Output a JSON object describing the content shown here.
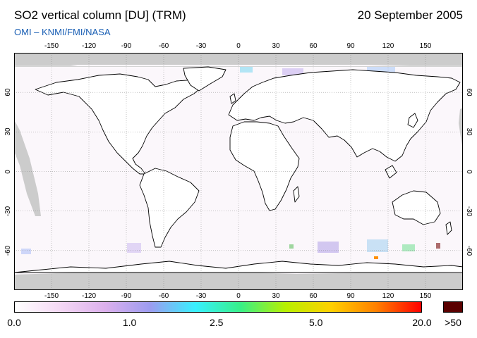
{
  "header": {
    "title": "SO2 vertical column [DU] (TRM)",
    "date": "20 September 2005",
    "credit": "OMI  –  KNMI/FMI/NASA"
  },
  "map": {
    "projection": "equirectangular",
    "lon_range": [
      -180,
      180
    ],
    "lat_range": [
      -90,
      90
    ],
    "lon_ticks_top": [
      "-150",
      "-120",
      "-90",
      "-60",
      "-30",
      "0",
      "30",
      "60",
      "90",
      "120",
      "150"
    ],
    "lon_ticks_bottom": [
      "-150",
      "-120",
      "-90",
      "-60",
      "-30",
      "0",
      "30",
      "60",
      "90",
      "120",
      "150"
    ],
    "lat_ticks_left": [
      "60",
      "30",
      "0",
      "-30",
      "-60"
    ],
    "lat_ticks_right": [
      "60",
      "30",
      "0",
      "-30",
      "-60"
    ],
    "no_data_color": "#cccccc",
    "coastline_color": "#000000",
    "gridline_color": "#888888"
  },
  "colorbar": {
    "labels": [
      {
        "text": "0.0",
        "value": 0.0
      },
      {
        "text": "1.0",
        "value": 1.0
      },
      {
        "text": "2.5",
        "value": 2.5
      },
      {
        "text": "5.0",
        "value": 5.0
      },
      {
        "text": "20.0",
        "value": 20.0
      }
    ],
    "overflow_label": ">50",
    "overflow_color": "#5a0000",
    "colors": [
      "#ffffff",
      "#f4d8f4",
      "#dcb0ec",
      "#9c9cf0",
      "#38f0ff",
      "#38f088",
      "#b8f000",
      "#ffd000",
      "#ff8000",
      "#ff0000"
    ]
  }
}
